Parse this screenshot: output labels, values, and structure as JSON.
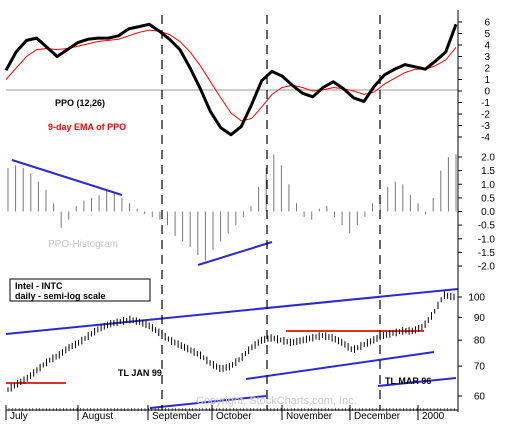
{
  "chart_data": [
    {
      "type": "line",
      "panel": "ppo",
      "ylim": [
        -4,
        6
      ],
      "y_ticks": [
        "6",
        "5",
        "4",
        "3",
        "2",
        "1",
        "0",
        "-1",
        "-2",
        "-3",
        "-4"
      ],
      "zero_line": 0,
      "series": [
        {
          "name": "PPO (12,26)",
          "color": "#000000",
          "values": [
            1.8,
            3.4,
            4.4,
            4.6,
            3.8,
            3.0,
            3.6,
            4.2,
            4.5,
            4.6,
            4.6,
            4.8,
            5.4,
            5.6,
            5.8,
            5.2,
            4.5,
            3.6,
            2.0,
            0.2,
            -1.8,
            -3.2,
            -3.8,
            -3.1,
            -1.2,
            0.9,
            1.7,
            1.3,
            0.5,
            -0.2,
            -0.5,
            0.3,
            0.8,
            0.2,
            -0.6,
            -0.9,
            0.4,
            1.4,
            1.9,
            2.3,
            2.1,
            1.9,
            2.6,
            3.4,
            5.8
          ]
        },
        {
          "name": "9-day EMA of PPO",
          "color": "#ff0000",
          "values": [
            1.0,
            2.0,
            3.0,
            3.6,
            3.7,
            3.6,
            3.7,
            3.9,
            4.1,
            4.3,
            4.4,
            4.5,
            4.8,
            5.1,
            5.3,
            5.2,
            4.9,
            4.3,
            3.4,
            2.2,
            0.8,
            -0.6,
            -1.9,
            -2.6,
            -2.4,
            -1.4,
            -0.3,
            0.3,
            0.5,
            0.3,
            0.0,
            0.1,
            0.3,
            0.2,
            0.0,
            -0.3,
            -0.1,
            0.6,
            1.1,
            1.6,
            1.9,
            1.9,
            2.2,
            2.7,
            3.8
          ]
        }
      ]
    },
    {
      "type": "bar",
      "panel": "histogram",
      "title": "PPO-Histogram",
      "ylim": [
        -2.0,
        2.0
      ],
      "y_ticks": [
        "2.0",
        "1.5",
        "1.0",
        "0.5",
        "0.0",
        "-0.5",
        "-1.0",
        "-1.5",
        "-2.0"
      ],
      "values": [
        1.6,
        1.7,
        1.6,
        1.4,
        1.1,
        0.8,
        0.3,
        -0.6,
        -0.3,
        0.2,
        0.4,
        0.5,
        0.6,
        0.8,
        0.7,
        0.5,
        0.3,
        0.1,
        -0.1,
        -0.2,
        -0.3,
        -0.5,
        -0.9,
        -1.1,
        -1.3,
        -1.6,
        -1.8,
        -1.4,
        -1.1,
        -0.8,
        -0.5,
        -0.2,
        0.2,
        0.9,
        1.6,
        2.1,
        1.7,
        1.0,
        0.3,
        -0.2,
        -0.3,
        0.1,
        0.2,
        -0.2,
        -0.5,
        -0.8,
        -0.5,
        -0.2,
        0.3,
        0.6,
        0.9,
        1.1,
        1.0,
        0.6,
        0.3,
        -0.1,
        0.5,
        1.5,
        2.0,
        2.1
      ]
    },
    {
      "type": "line",
      "panel": "price",
      "y_scale": "log",
      "ylim": [
        57,
        106
      ],
      "y_ticks": [
        "100",
        "90",
        "80",
        "70",
        "60"
      ],
      "series": [
        {
          "name": "Intel - INTC",
          "color": "#000000",
          "values": [
            62,
            64,
            66,
            69,
            72,
            74,
            77,
            79,
            82,
            85,
            87,
            88,
            89,
            88,
            86,
            83,
            80,
            78,
            76,
            74,
            71,
            69,
            70,
            73,
            77,
            80,
            81,
            80,
            79,
            80,
            81,
            82,
            81,
            79,
            76,
            78,
            80,
            82,
            83,
            84,
            84,
            86,
            92,
            101,
            100
          ]
        }
      ]
    }
  ],
  "labels": {
    "ppo": "PPO (12,26)",
    "ema": "9-day EMA of PPO",
    "histogram": "PPO-Histogram",
    "ticker": "Intel - INTC",
    "scale": "daily - semi-log scale",
    "tl_jan": "TL JAN 99",
    "tl_mar": "TL MAR 96",
    "copyright": "Copyright, StockCharts.com, Inc."
  },
  "months": [
    "July",
    "August",
    "September",
    "October",
    "November",
    "December",
    "2000"
  ],
  "colors": {
    "ppo": "#000000",
    "ema": "#ff0000",
    "trend": "#2a2ad8",
    "support": "#e03020",
    "grid": "#999999"
  }
}
